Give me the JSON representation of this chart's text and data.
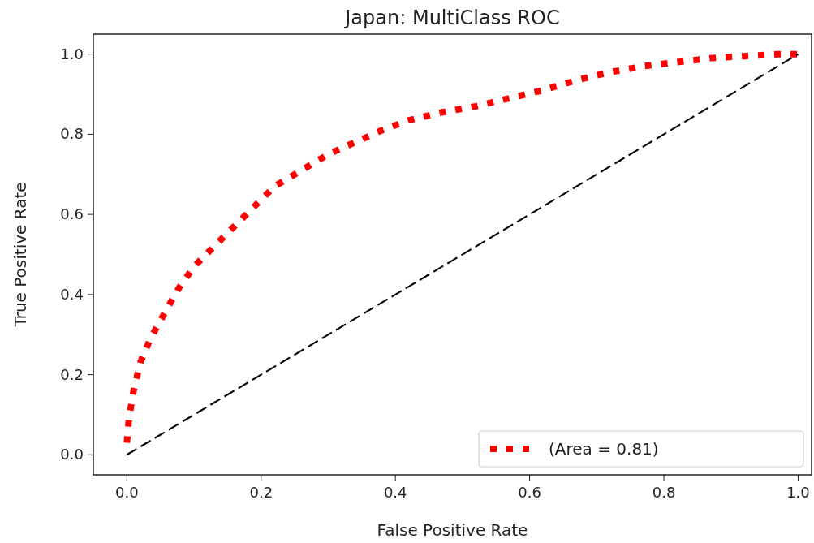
{
  "chart_data": {
    "type": "line",
    "title": "Japan: MultiClass ROC",
    "xlabel": "False Positive Rate",
    "ylabel": "True Positive Rate",
    "xlim": [
      -0.05,
      1.02
    ],
    "ylim": [
      -0.05,
      1.05
    ],
    "xticks": [
      {
        "value": 0,
        "label": "0.0"
      },
      {
        "value": 0.2,
        "label": "0.2"
      },
      {
        "value": 0.4,
        "label": "0.4"
      },
      {
        "value": 0.6,
        "label": "0.6"
      },
      {
        "value": 0.8,
        "label": "0.8"
      },
      {
        "value": 1,
        "label": "1.0"
      }
    ],
    "yticks": [
      {
        "value": 0,
        "label": "0.0"
      },
      {
        "value": 0.2,
        "label": "0.2"
      },
      {
        "value": 0.4,
        "label": "0.4"
      },
      {
        "value": 0.6,
        "label": "0.6"
      },
      {
        "value": 0.8,
        "label": "0.8"
      },
      {
        "value": 1,
        "label": "1.0"
      }
    ],
    "grid": false,
    "legend": "bottom right",
    "series": [
      {
        "name": "(Area = 0.81)",
        "color": "#ff0000",
        "line_style": "dotted",
        "x": [
          0,
          0.003,
          0.01,
          0.02,
          0.035,
          0.055,
          0.075,
          0.1,
          0.13,
          0.16,
          0.19,
          0.22,
          0.26,
          0.3,
          0.34,
          0.38,
          0.42,
          0.47,
          0.52,
          0.57,
          0.62,
          0.67,
          0.72,
          0.77,
          0.82,
          0.87,
          0.92,
          0.97,
          1
        ],
        "values": [
          0.03,
          0.09,
          0.16,
          0.23,
          0.29,
          0.35,
          0.41,
          0.47,
          0.52,
          0.57,
          0.62,
          0.67,
          0.71,
          0.75,
          0.78,
          0.81,
          0.835,
          0.855,
          0.87,
          0.89,
          0.91,
          0.935,
          0.955,
          0.97,
          0.98,
          0.99,
          0.995,
          1,
          1
        ]
      },
      {
        "color": "#000000",
        "line_style": "dashed",
        "x": [
          0,
          1
        ],
        "values": [
          0,
          1
        ]
      }
    ]
  }
}
